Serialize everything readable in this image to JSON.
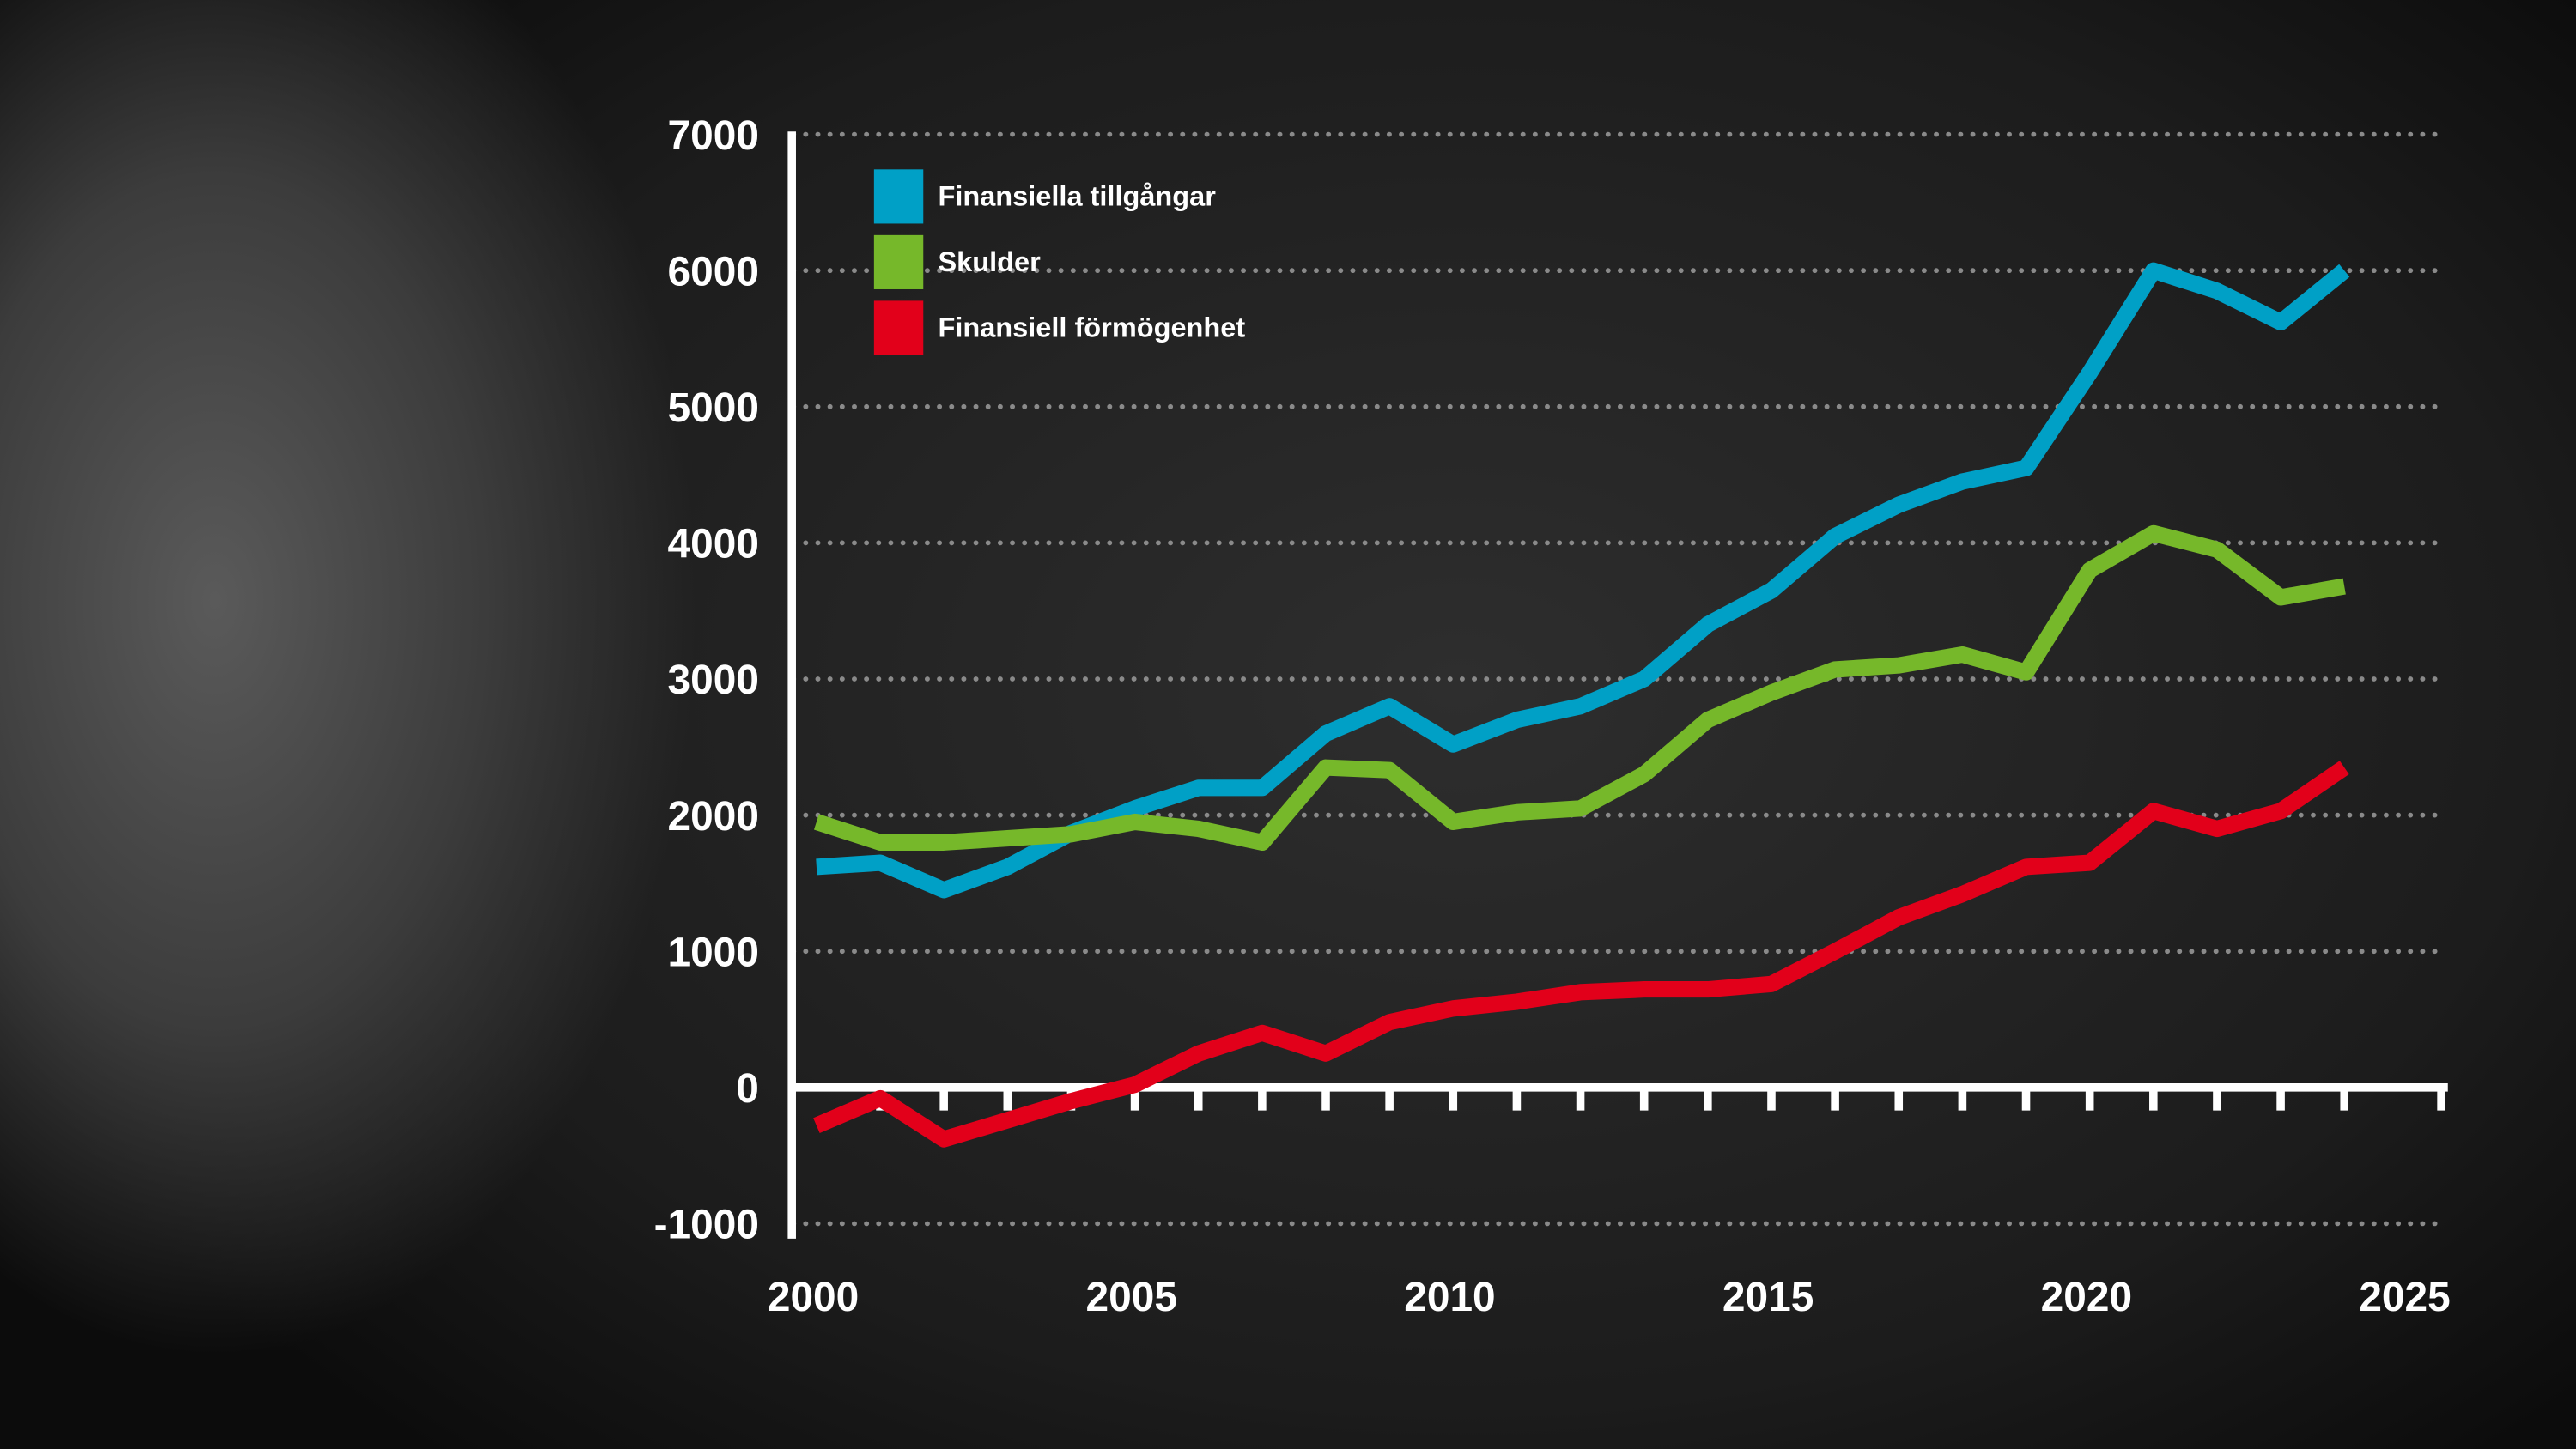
{
  "chart_data": {
    "type": "line",
    "title": "",
    "xlabel": "",
    "ylabel": "",
    "xlim": [
      2000,
      2025
    ],
    "ylim": [
      -1000,
      7000
    ],
    "x_ticks": [
      "2000",
      "2005",
      "2010",
      "2015",
      "2020",
      "2025"
    ],
    "y_ticks": [
      "-1000",
      "0",
      "1000",
      "2000",
      "3000",
      "4000",
      "5000",
      "6000",
      "7000"
    ],
    "y_tick_values": [
      -1000,
      0,
      1000,
      2000,
      3000,
      4000,
      5000,
      6000,
      7000
    ],
    "x_tick_values": [
      2000,
      2005,
      2010,
      2015,
      2020,
      2025
    ],
    "grid": true,
    "legend_position": "top-left",
    "x": [
      2000,
      2001,
      2002,
      2003,
      2004,
      2005,
      2006,
      2007,
      2008,
      2009,
      2010,
      2011,
      2012,
      2013,
      2014,
      2015,
      2016,
      2017,
      2018,
      2019,
      2020,
      2021,
      2022,
      2023,
      2024
    ],
    "series": [
      {
        "name": "Finansiella tillgångar",
        "color": "#00a0c6",
        "values": [
          1620,
          1650,
          1450,
          1620,
          1870,
          2050,
          2200,
          2200,
          2600,
          2800,
          2520,
          2700,
          2800,
          3000,
          3400,
          3650,
          4050,
          4280,
          4450,
          4550,
          5250,
          6000,
          5850,
          5620,
          6000
        ]
      },
      {
        "name": "Skulder",
        "color": "#76b82a",
        "values": [
          1950,
          1800,
          1800,
          1830,
          1860,
          1950,
          1900,
          1800,
          2350,
          2330,
          1950,
          2020,
          2050,
          2300,
          2700,
          2900,
          3070,
          3100,
          3180,
          3050,
          3800,
          4070,
          3950,
          3600,
          3680
        ]
      },
      {
        "name": "Finansiell förmögenhet",
        "color": "#e2001a",
        "values": [
          -280,
          -80,
          -380,
          -240,
          -100,
          20,
          250,
          400,
          250,
          480,
          580,
          630,
          700,
          720,
          720,
          760,
          1000,
          1250,
          1420,
          1620,
          1650,
          2030,
          1900,
          2030,
          2350
        ]
      }
    ]
  }
}
